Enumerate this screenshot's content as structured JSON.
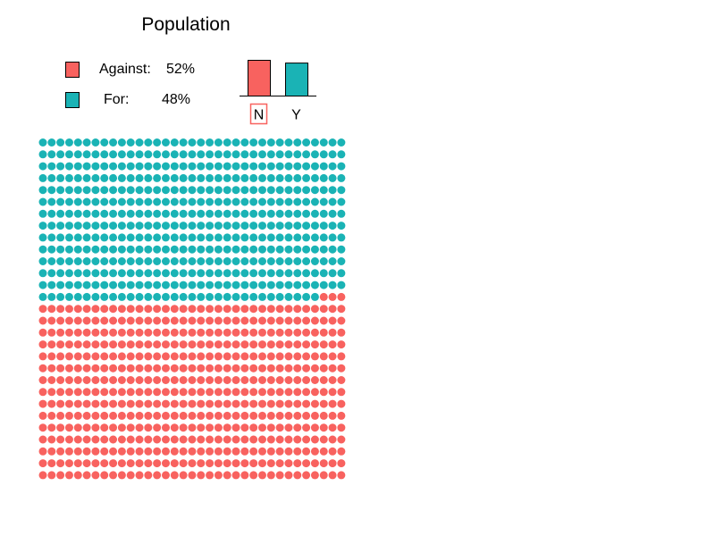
{
  "chart_data": {
    "type": "waffle",
    "title": "Population",
    "grid": {
      "rows": 29,
      "cols": 35
    },
    "categories": [
      {
        "key": "N",
        "label": "Against:",
        "percent_label": "52%",
        "value": 52,
        "color": "#f8625f"
      },
      {
        "key": "Y",
        "label": "For:",
        "percent_label": "48%",
        "value": 48,
        "color": "#1ab3b5"
      }
    ],
    "bar_inset": {
      "categories": [
        "N",
        "Y"
      ],
      "values": [
        52,
        48
      ],
      "highlighted": "N"
    }
  }
}
